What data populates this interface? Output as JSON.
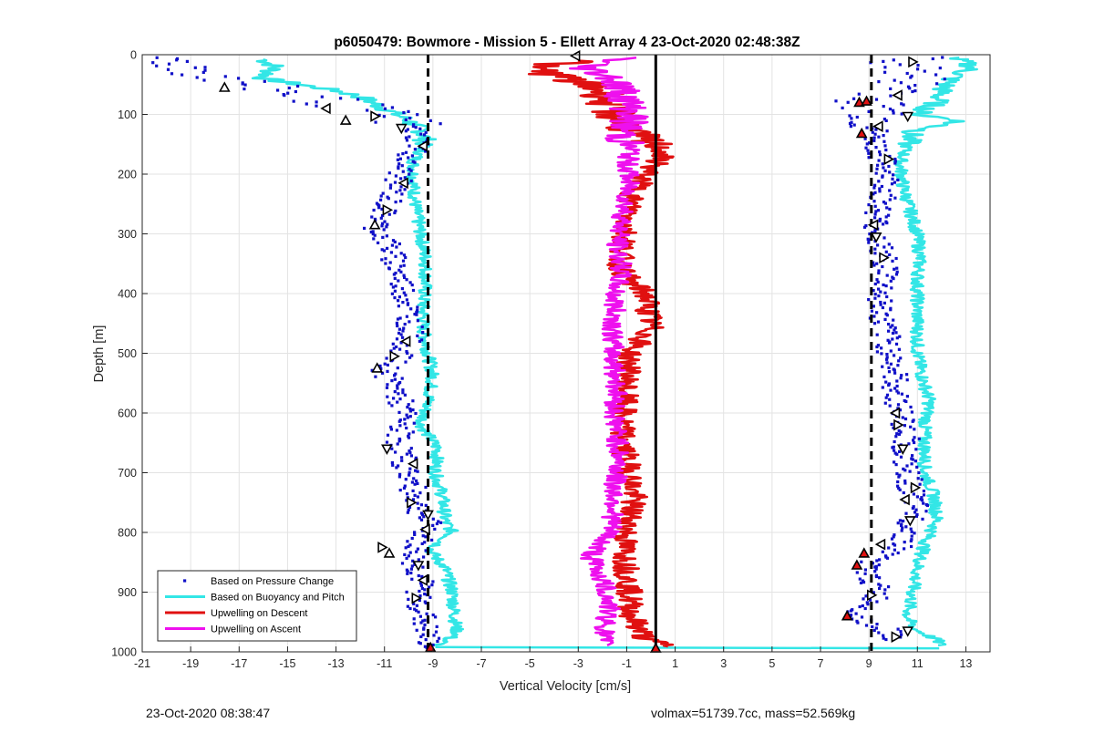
{
  "footer": {
    "left": "23-Oct-2020 08:38:47",
    "right": "volmax=51739.7cc, mass=52.569kg"
  },
  "chart_data": {
    "type": "scatter",
    "title": "p6050479: Bowmore - Mission 5 - Ellett Array 4 23-Oct-2020 02:48:38Z",
    "xlabel": "Vertical Velocity [cm/s]",
    "ylabel": "Depth [m]",
    "xlim": [
      -21,
      14
    ],
    "ylim": [
      0,
      1000
    ],
    "y_reversed": true,
    "xticks": [
      -21,
      -19,
      -17,
      -15,
      -13,
      -11,
      -9,
      -7,
      -5,
      -3,
      -1,
      1,
      3,
      5,
      7,
      9,
      11,
      13
    ],
    "yticks": [
      0,
      100,
      200,
      300,
      400,
      500,
      600,
      700,
      800,
      900,
      1000
    ],
    "grid": true,
    "legend_location": "bottom-left",
    "reference_lines": [
      {
        "x": -9.2,
        "style": "dashed",
        "color": "#000000"
      },
      {
        "x": 0.2,
        "style": "solid",
        "color": "#000000"
      },
      {
        "x": 9.1,
        "style": "dashed",
        "color": "#000000"
      }
    ],
    "series": [
      {
        "name": "Based on Pressure Change",
        "style": "points",
        "color": "#1010c8",
        "segments": [
          {
            "depth": [
              5,
              30,
              55,
              75,
              90,
              100,
              115,
              130,
              150,
              180,
              220,
              260,
              290,
              320,
              380,
              420,
              470,
              500,
              530,
              560,
              600,
              650,
              690,
              730,
              760,
              790,
              820,
              850,
              880,
              910,
              940,
              970,
              995
            ],
            "x": [
              -20,
              -18.5,
              -16,
              -13.5,
              -12,
              -11,
              -10,
              -9.7,
              -9.5,
              -10.2,
              -10.5,
              -11,
              -11.3,
              -10.8,
              -10.3,
              -10,
              -9.9,
              -10.3,
              -11,
              -10.5,
              -10.2,
              -10.4,
              -10.1,
              -9.8,
              -9.6,
              -9.1,
              -9.7,
              -9.8,
              -9.5,
              -9.6,
              -9.4,
              -9.3,
              -9.1
            ]
          },
          {
            "depth": [
              5,
              30,
              60,
              80,
              100,
              120,
              140,
              160,
              200,
              240,
              280,
              320,
              360,
              400,
              440,
              480,
              520,
              560,
              600,
              640,
              680,
              720,
              760,
              800,
              820,
              840,
              860,
              880,
              900,
              920,
              940,
              960,
              980
            ],
            "x": [
              10.5,
              10.8,
              10.5,
              9,
              9.6,
              9.3,
              9.2,
              9.4,
              9.8,
              9.6,
              9.3,
              9.4,
              9.8,
              9.5,
              9.5,
              9.8,
              10,
              10.1,
              10.3,
              10.6,
              10.4,
              10.7,
              10.9,
              10.6,
              10.4,
              9.6,
              8.8,
              9.1,
              9.4,
              9.1,
              8.4,
              9.6,
              10.2
            ]
          }
        ]
      },
      {
        "name": "Based on Buoyancy and Pitch",
        "style": "line",
        "color": "#33e6e6",
        "segments": [
          {
            "depth": [
              8,
              20,
              40,
              60,
              70,
              90,
              110,
              130,
              150,
              180,
              220,
              260,
              300,
              340,
              380,
              420,
              460,
              500,
              540,
              580,
              620,
              660,
              700,
              740,
              780,
              800,
              830,
              860,
              900,
              940,
              970,
              990
            ],
            "x": [
              -16,
              -15.5,
              -16,
              -13,
              -12,
              -11,
              -10,
              -9.4,
              -9.3,
              -9.8,
              -9.8,
              -9.7,
              -9.5,
              -9.3,
              -9.3,
              -9.4,
              -9.4,
              -9.2,
              -9,
              -9.2,
              -9.5,
              -8.8,
              -8.9,
              -8.6,
              -8.5,
              -8.2,
              -9.1,
              -8.5,
              -8.2,
              -8.1,
              -8,
              -8.9
            ]
          },
          {
            "depth": [
              5,
              20,
              40,
              60,
              80,
              100,
              110,
              130,
              150,
              180,
              220,
              260,
              300,
              340,
              380,
              420,
              460,
              500,
              540,
              580,
              620,
              660,
              700,
              740,
              780,
              820,
              860,
              900,
              940,
              960,
              980,
              990
            ],
            "x": [
              12.5,
              13.3,
              12.4,
              12,
              11.8,
              11,
              12.8,
              10.8,
              10.6,
              10.3,
              10.4,
              10.7,
              11,
              11.1,
              11,
              11,
              11,
              11,
              11.2,
              11.5,
              11.3,
              11.3,
              11.3,
              11.7,
              11.8,
              11.3,
              11,
              10.8,
              10.6,
              10.8,
              11.8,
              12
            ]
          },
          {
            "depth": [
              992,
              993,
              994
            ],
            "x": [
              -8.9,
              -1,
              11.9
            ]
          }
        ]
      },
      {
        "name": "Upwelling on Descent",
        "style": "line",
        "color": "#e01010",
        "segments": [
          {
            "depth": [
              10,
              20,
              40,
              60,
              80,
              100,
              120,
              140,
              160,
              180,
              200,
              240,
              280,
              320,
              350,
              380,
              400,
              430,
              460,
              500,
              540,
              580,
              620,
              660,
              700,
              740,
              780,
              820,
              860,
              900,
              940,
              980,
              992
            ],
            "x": [
              -2.5,
              -5,
              -3.5,
              -2,
              -1.8,
              -1.5,
              -1,
              -0.5,
              0.5,
              0.3,
              -0.3,
              -0.8,
              -1,
              -1.1,
              -1.3,
              -0.9,
              -0.2,
              -0.1,
              0,
              -0.9,
              -1,
              -1.1,
              -1.2,
              -1.1,
              -0.9,
              -0.7,
              -0.9,
              -1.1,
              -1,
              -0.9,
              -0.8,
              -0.2,
              1
            ]
          }
        ]
      },
      {
        "name": "Upwelling on Ascent",
        "style": "line",
        "color": "#ee10ee",
        "segments": [
          {
            "depth": [
              5,
              20,
              40,
              60,
              80,
              100,
              120,
              140,
              160,
              180,
              200,
              240,
              280,
              320,
              360,
              400,
              440,
              480,
              520,
              560,
              600,
              640,
              680,
              720,
              760,
              800,
              840,
              880,
              920,
              960,
              990
            ],
            "x": [
              -1,
              -2.8,
              -1.5,
              -1.2,
              -1,
              -0.8,
              -1,
              -1.2,
              -0.8,
              -1,
              -0.9,
              -1,
              -1.2,
              -1.4,
              -1.2,
              -1.5,
              -1.5,
              -1.6,
              -1.5,
              -1.4,
              -1.5,
              -1.4,
              -1.3,
              -1.5,
              -1.5,
              -1.7,
              -2.5,
              -2,
              -1.7,
              -1.9,
              -2
            ]
          }
        ]
      }
    ],
    "markers": [
      {
        "x": -3.1,
        "depth": 2,
        "shape": "triangle-left",
        "fill": "#ffffff"
      },
      {
        "x": -17.6,
        "depth": 55,
        "shape": "triangle-up",
        "fill": "#ffffff"
      },
      {
        "x": -13.4,
        "depth": 90,
        "shape": "triangle-left",
        "fill": "#ffffff"
      },
      {
        "x": -11.4,
        "depth": 103,
        "shape": "triangle-right",
        "fill": "#ffffff"
      },
      {
        "x": -12.6,
        "depth": 110,
        "shape": "triangle-up",
        "fill": "#ffffff"
      },
      {
        "x": -10.3,
        "depth": 123,
        "shape": "triangle-down",
        "fill": "#ffffff"
      },
      {
        "x": -9.4,
        "depth": 153,
        "shape": "triangle-left",
        "fill": "#ffffff"
      },
      {
        "x": -10.2,
        "depth": 215,
        "shape": "triangle-left",
        "fill": "#ffffff"
      },
      {
        "x": -10.9,
        "depth": 260,
        "shape": "triangle-right",
        "fill": "#ffffff"
      },
      {
        "x": -11.4,
        "depth": 285,
        "shape": "triangle-up",
        "fill": "#ffffff"
      },
      {
        "x": -10.1,
        "depth": 480,
        "shape": "triangle-left",
        "fill": "#ffffff"
      },
      {
        "x": -10.6,
        "depth": 505,
        "shape": "triangle-right",
        "fill": "#ffffff"
      },
      {
        "x": -11.3,
        "depth": 525,
        "shape": "triangle-up",
        "fill": "#ffffff"
      },
      {
        "x": -10.9,
        "depth": 660,
        "shape": "triangle-down",
        "fill": "#ffffff"
      },
      {
        "x": -9.8,
        "depth": 685,
        "shape": "triangle-left",
        "fill": "#ffffff"
      },
      {
        "x": -9.9,
        "depth": 750,
        "shape": "triangle-right",
        "fill": "#ffffff"
      },
      {
        "x": -9.2,
        "depth": 770,
        "shape": "triangle-down",
        "fill": "#ffffff"
      },
      {
        "x": -9.3,
        "depth": 795,
        "shape": "triangle-left",
        "fill": "#ffffff"
      },
      {
        "x": -11.1,
        "depth": 825,
        "shape": "triangle-right",
        "fill": "#ffffff"
      },
      {
        "x": -10.8,
        "depth": 835,
        "shape": "triangle-up",
        "fill": "#ffffff"
      },
      {
        "x": -9.6,
        "depth": 855,
        "shape": "triangle-down",
        "fill": "#ffffff"
      },
      {
        "x": -9.4,
        "depth": 880,
        "shape": "triangle-left",
        "fill": "#ffffff"
      },
      {
        "x": -9.7,
        "depth": 910,
        "shape": "triangle-right",
        "fill": "#ffffff"
      },
      {
        "x": -9.1,
        "depth": 993,
        "shape": "triangle-up",
        "fill": "#e01010"
      },
      {
        "x": 0.2,
        "depth": 994,
        "shape": "triangle-up",
        "fill": "#e01010"
      },
      {
        "x": 10.8,
        "depth": 12,
        "shape": "triangle-right",
        "fill": "#ffffff"
      },
      {
        "x": 10.2,
        "depth": 68,
        "shape": "triangle-left",
        "fill": "#ffffff"
      },
      {
        "x": 8.6,
        "depth": 80,
        "shape": "triangle-up",
        "fill": "#e01010"
      },
      {
        "x": 8.9,
        "depth": 78,
        "shape": "triangle-up",
        "fill": "#e01010"
      },
      {
        "x": 10.6,
        "depth": 103,
        "shape": "triangle-down",
        "fill": "#ffffff"
      },
      {
        "x": 9.4,
        "depth": 120,
        "shape": "triangle-left",
        "fill": "#ffffff"
      },
      {
        "x": 8.7,
        "depth": 132,
        "shape": "triangle-up",
        "fill": "#e01010"
      },
      {
        "x": 9.8,
        "depth": 175,
        "shape": "triangle-right",
        "fill": "#ffffff"
      },
      {
        "x": 9.2,
        "depth": 285,
        "shape": "triangle-left",
        "fill": "#ffffff"
      },
      {
        "x": 9.3,
        "depth": 305,
        "shape": "triangle-down",
        "fill": "#ffffff"
      },
      {
        "x": 9.6,
        "depth": 340,
        "shape": "triangle-right",
        "fill": "#ffffff"
      },
      {
        "x": 10.1,
        "depth": 600,
        "shape": "triangle-left",
        "fill": "#ffffff"
      },
      {
        "x": 10.2,
        "depth": 620,
        "shape": "triangle-right",
        "fill": "#ffffff"
      },
      {
        "x": 10.4,
        "depth": 660,
        "shape": "triangle-down",
        "fill": "#ffffff"
      },
      {
        "x": 10.9,
        "depth": 725,
        "shape": "triangle-right",
        "fill": "#ffffff"
      },
      {
        "x": 10.5,
        "depth": 745,
        "shape": "triangle-left",
        "fill": "#ffffff"
      },
      {
        "x": 10.7,
        "depth": 780,
        "shape": "triangle-down",
        "fill": "#ffffff"
      },
      {
        "x": 9.5,
        "depth": 820,
        "shape": "triangle-left",
        "fill": "#ffffff"
      },
      {
        "x": 8.8,
        "depth": 835,
        "shape": "triangle-up",
        "fill": "#e01010"
      },
      {
        "x": 8.5,
        "depth": 855,
        "shape": "triangle-up",
        "fill": "#e01010"
      },
      {
        "x": 9.1,
        "depth": 905,
        "shape": "triangle-right",
        "fill": "#ffffff"
      },
      {
        "x": 8.1,
        "depth": 940,
        "shape": "triangle-up",
        "fill": "#e01010"
      },
      {
        "x": 10.6,
        "depth": 965,
        "shape": "triangle-down",
        "fill": "#ffffff"
      },
      {
        "x": 10.1,
        "depth": 975,
        "shape": "triangle-right",
        "fill": "#ffffff"
      }
    ]
  }
}
